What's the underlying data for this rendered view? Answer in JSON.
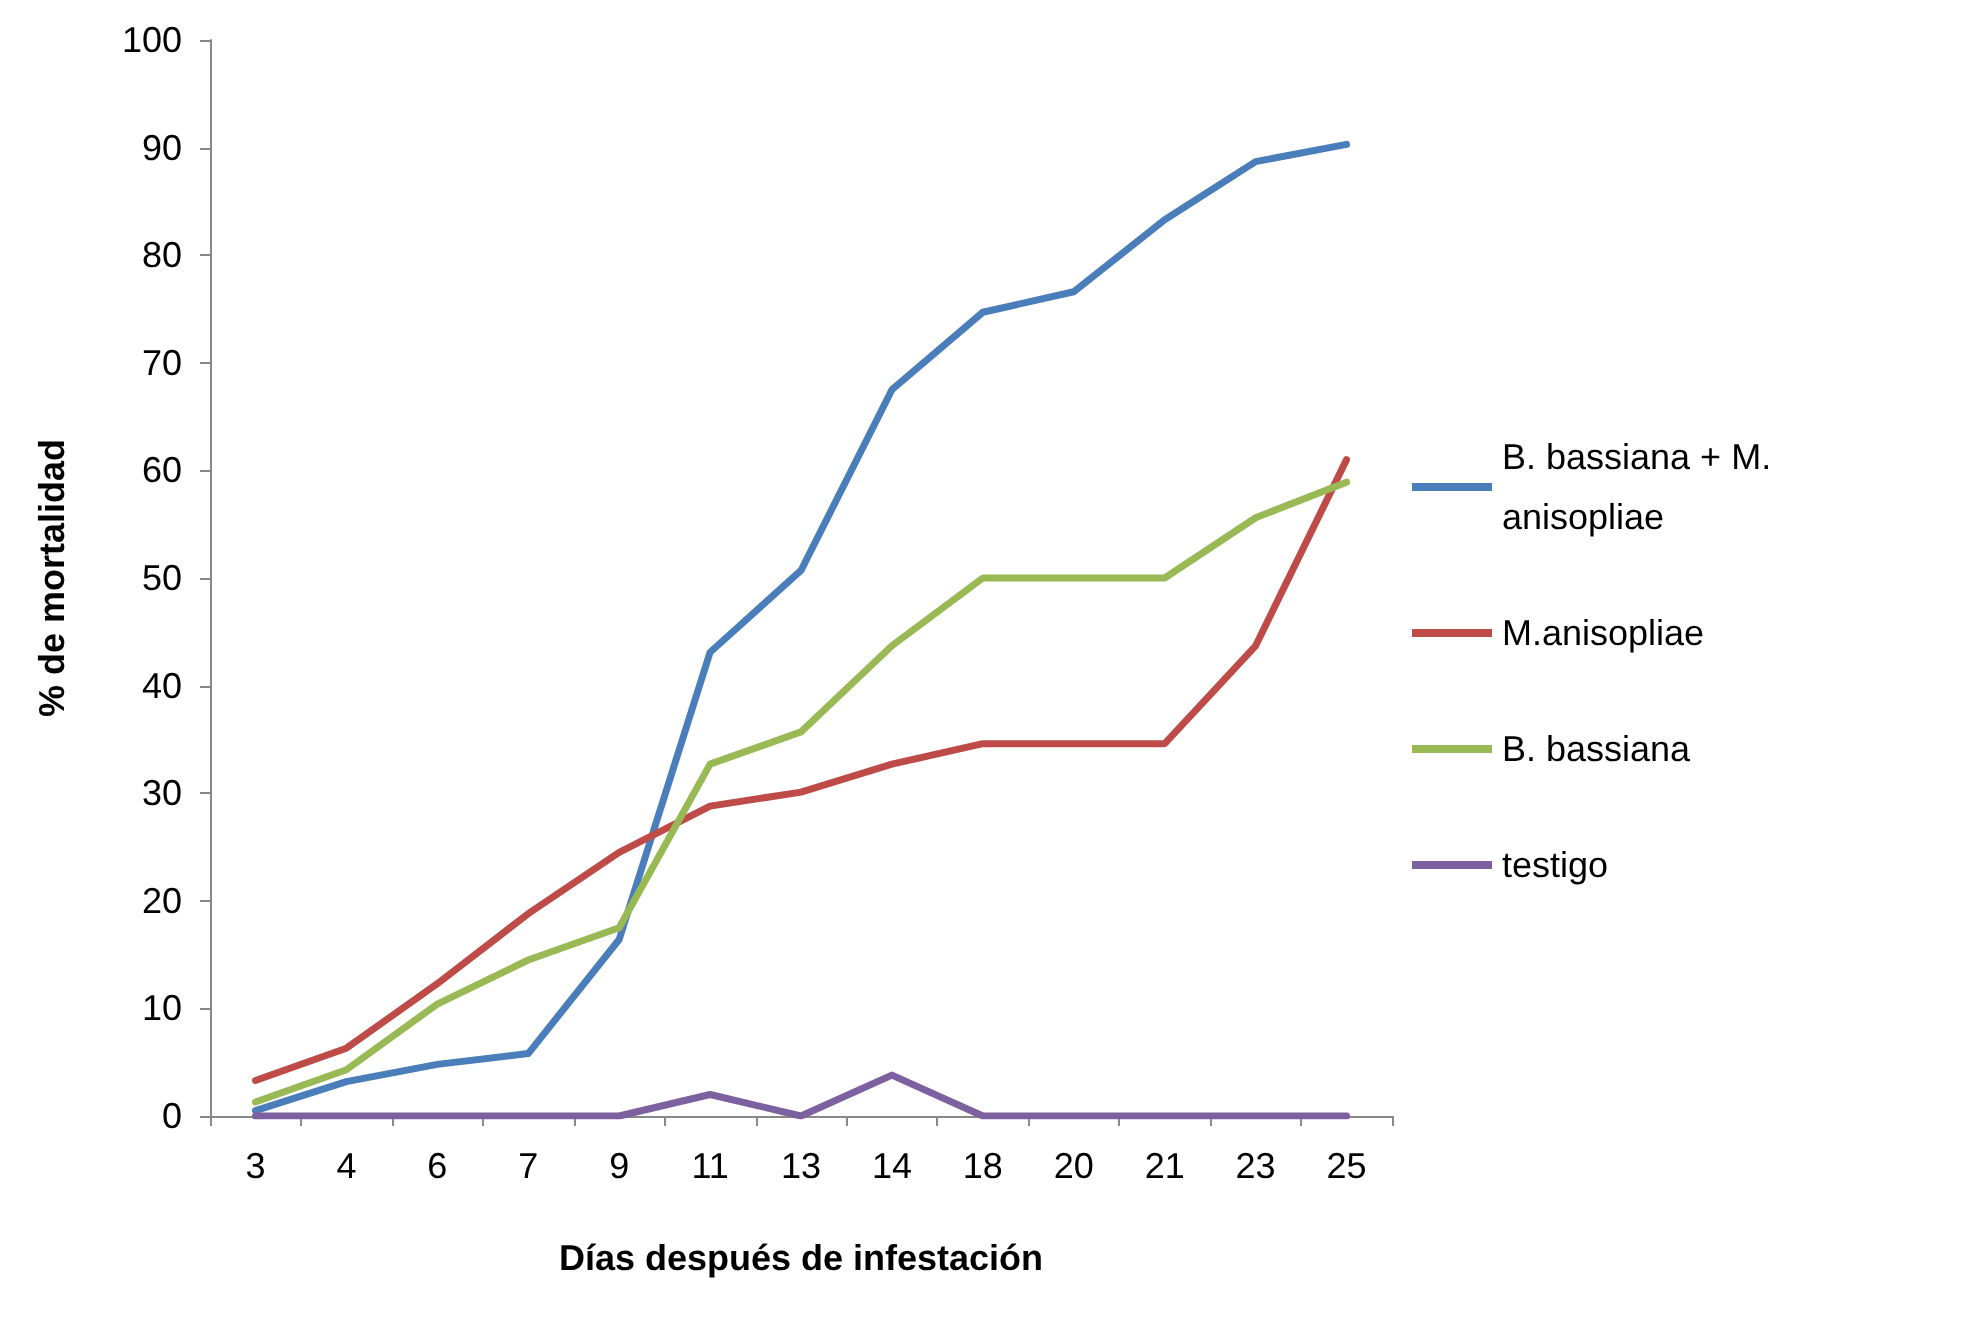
{
  "chart_data": {
    "type": "line",
    "xlabel": "Días después de infestación",
    "ylabel": "% de mortalidad",
    "categories": [
      "3",
      "4",
      "6",
      "7",
      "9",
      "11",
      "13",
      "14",
      "18",
      "20",
      "21",
      "23",
      "25"
    ],
    "series": [
      {
        "name": "B. bassiana + M. anisopliae",
        "color": "#4a7ebb",
        "values": [
          0.5,
          3.2,
          4.8,
          5.8,
          16.4,
          43.1,
          50.7,
          67.5,
          74.7,
          76.6,
          83.3,
          88.7,
          90.3
        ]
      },
      {
        "name": "M.anisopliae",
        "color": "#be4b48",
        "values": [
          3.3,
          6.3,
          12.3,
          18.8,
          24.5,
          28.8,
          30.1,
          32.7,
          34.6,
          34.6,
          34.6,
          43.7,
          61
        ]
      },
      {
        "name": "B. bassiana",
        "color": "#98b954",
        "values": [
          1.3,
          4.3,
          10.4,
          14.5,
          17.5,
          32.7,
          35.7,
          43.7,
          50,
          50,
          50,
          55.6,
          58.9
        ]
      },
      {
        "name": "testigo",
        "color": "#7d60a0",
        "values": [
          0,
          0,
          0,
          0,
          0,
          2,
          0,
          3.8,
          0,
          0,
          0,
          0,
          0
        ]
      }
    ],
    "ylim": [
      0,
      100
    ],
    "yticks": [
      0,
      10,
      20,
      30,
      40,
      50,
      60,
      70,
      80,
      90,
      100
    ],
    "grid": false,
    "legend": "right",
    "marker": "none",
    "line_style": "solid"
  }
}
